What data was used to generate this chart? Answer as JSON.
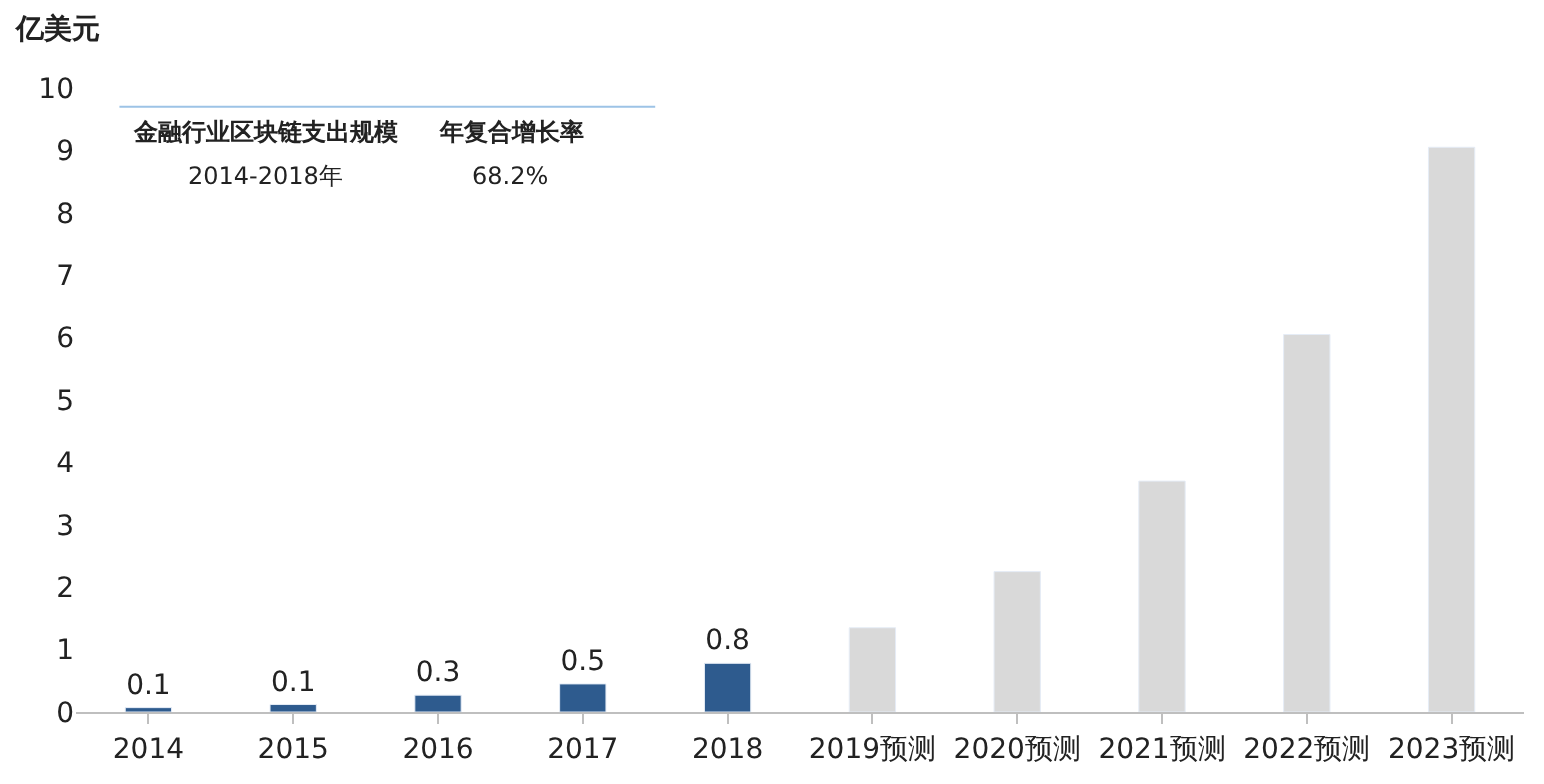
{
  "chart_data": {
    "type": "bar",
    "ylabel": "亿美元",
    "categories": [
      "2014",
      "2015",
      "2016",
      "2017",
      "2018",
      "2019预测",
      "2020预测",
      "2021预测",
      "2022预测",
      "2023预测"
    ],
    "values": [
      0.07,
      0.12,
      0.27,
      0.45,
      0.78,
      1.35,
      2.25,
      3.7,
      6.05,
      9.05
    ],
    "colors": [
      "#2e5b8e",
      "#2e5b8e",
      "#2e5b8e",
      "#2e5b8e",
      "#2e5b8e",
      "#d9d9d9",
      "#d9d9d9",
      "#d9d9d9",
      "#d9d9d9",
      "#d9d9d9"
    ],
    "value_labels": [
      "0.1",
      "0.1",
      "0.3",
      "0.5",
      "0.8",
      null,
      null,
      null,
      null,
      null
    ],
    "ylim": [
      0,
      10
    ],
    "yticks": [
      0,
      1,
      2,
      3,
      4,
      5,
      6,
      7,
      8,
      9,
      10
    ],
    "annotations": [
      "金融行业区块链支出规模",
      "年复合增长率",
      "2014-2018年",
      "68.2%"
    ]
  }
}
